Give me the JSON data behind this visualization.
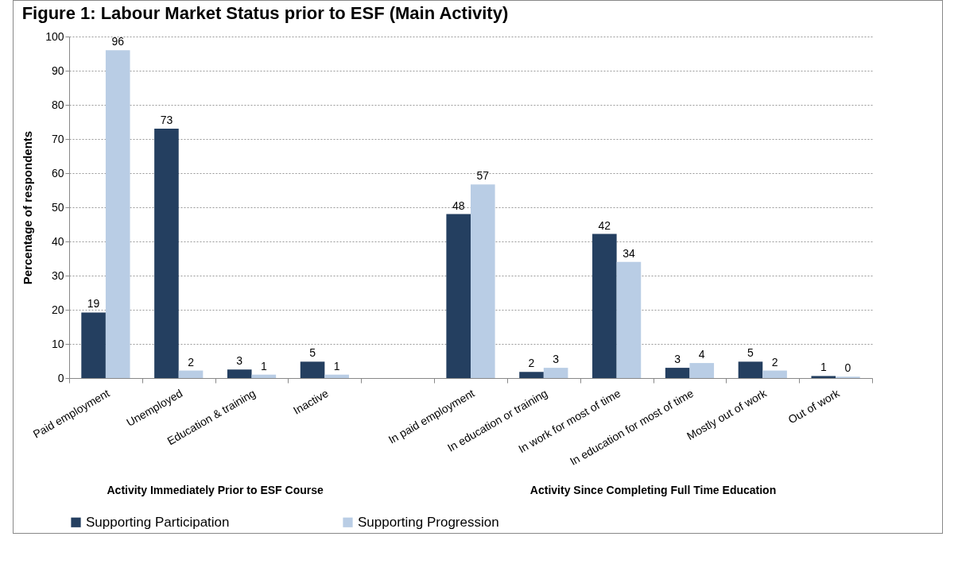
{
  "chart_data": {
    "type": "bar",
    "title": "Figure 1: Labour Market Status prior to ESF (Main Activity)",
    "ylabel": "Percentage of respondents",
    "categories": [
      "Paid employment",
      "Unemployed",
      "Education & training",
      "Inactive",
      null,
      "In paid employment",
      "In education or training",
      "In work for most of time",
      "In education for most of time",
      "Mostly out of work",
      "Out of work"
    ],
    "series": [
      {
        "name": "Supporting Participation",
        "color": "#243f60",
        "values": [
          19.2,
          73,
          2.5,
          4.8,
          null,
          48,
          1.8,
          42.2,
          3,
          4.8,
          0.6
        ],
        "value_labels": [
          "19",
          "73",
          "3",
          "5",
          null,
          "48",
          "2",
          "42",
          "3",
          "5",
          "1"
        ]
      },
      {
        "name": "Supporting Progression",
        "color": "#b9cde5",
        "values": [
          96,
          2.2,
          1,
          1,
          null,
          56.7,
          3,
          34,
          4.4,
          2.2,
          0.4
        ],
        "value_labels": [
          "96",
          "2",
          "1",
          "1",
          null,
          "57",
          "3",
          "34",
          "4",
          "2",
          "0"
        ]
      }
    ],
    "ylim": [
      0,
      100
    ],
    "yticks": [
      0,
      10,
      20,
      30,
      40,
      50,
      60,
      70,
      80,
      90,
      100
    ],
    "grid": "y",
    "legend": "bottom",
    "annotations": [
      "Activity Immediately Prior to ESF Course",
      "Activity Since Completing Full Time Education"
    ]
  }
}
